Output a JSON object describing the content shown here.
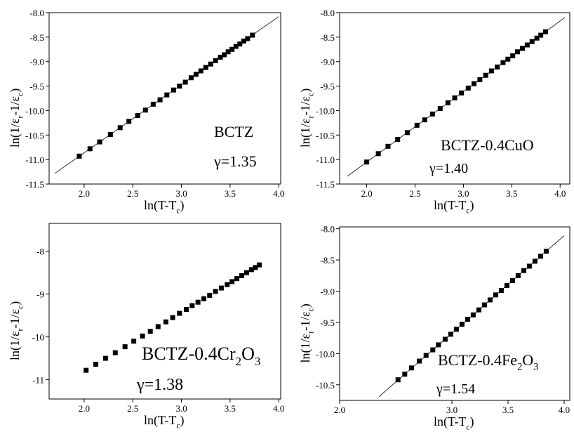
{
  "chart_data": [
    {
      "type": "scatter",
      "xlabel": [
        "ln(T-T",
        "c",
        ")"
      ],
      "ylabel": [
        "ln(1/ε",
        "r",
        "-1/ε",
        "c",
        ")"
      ],
      "annotation": [
        "BCTZ"
      ],
      "gamma": "γ=1.35",
      "xlim": [
        1.64,
        4.02
      ],
      "ylim": [
        -11.5,
        -8.0
      ],
      "xticks": [
        {
          "value": 2,
          "label": "2.0"
        },
        2.5,
        {
          "value": 3,
          "label": "3.0"
        },
        3.5,
        {
          "value": 4,
          "label": "4.0"
        }
      ],
      "yticks": [
        {
          "value": -8,
          "label": "-8.0"
        },
        -8.5,
        {
          "value": -9,
          "label": "-9.0"
        },
        -9.5,
        {
          "value": -10,
          "label": "-10.0"
        },
        -10.5,
        {
          "value": -11,
          "label": "-11.0"
        },
        -11.5
      ],
      "color": "#000000",
      "x": [
        1.95,
        2.06,
        2.16,
        2.27,
        2.37,
        2.46,
        2.55,
        2.63,
        2.71,
        2.78,
        2.85,
        2.92,
        2.98,
        3.04,
        3.1,
        3.15,
        3.2,
        3.25,
        3.3,
        3.35,
        3.4,
        3.44,
        3.48,
        3.52,
        3.56,
        3.6,
        3.64,
        3.68,
        3.73
      ],
      "values": [
        -10.93,
        -10.78,
        -10.64,
        -10.49,
        -10.35,
        -10.22,
        -10.1,
        -9.99,
        -9.87,
        -9.78,
        -9.68,
        -9.58,
        -9.5,
        -9.42,
        -9.33,
        -9.26,
        -9.19,
        -9.12,
        -9.05,
        -8.98,
        -8.91,
        -8.86,
        -8.8,
        -8.75,
        -8.69,
        -8.64,
        -8.58,
        -8.53,
        -8.46
      ],
      "fit": {
        "x": [
          1.7,
          4.0
        ],
        "values": [
          -11.28,
          -8.08
        ]
      }
    },
    {
      "type": "scatter",
      "xlabel": [
        "ln(T-T",
        "c",
        ")"
      ],
      "ylabel": [
        "ln(1/ε",
        "r",
        "-1/ε",
        "c",
        ")"
      ],
      "annotation": [
        "BCTZ-0.4CuO"
      ],
      "gamma": "γ=1.40",
      "xlim": [
        1.72,
        4.1
      ],
      "ylim": [
        -11.5,
        -8.0
      ],
      "xticks": [
        {
          "value": 2,
          "label": "2.0"
        },
        2.5,
        {
          "value": 3,
          "label": "3.0"
        },
        3.5,
        {
          "value": 4,
          "label": "4.0"
        }
      ],
      "yticks": [
        {
          "value": -8,
          "label": "-8.0"
        },
        -8.5,
        {
          "value": -9,
          "label": "-9.0"
        },
        -9.5,
        {
          "value": -10,
          "label": "-10.0"
        },
        -10.5,
        {
          "value": -11,
          "label": "-11.0"
        },
        -11.5
      ],
      "color": "#000000",
      "x": [
        2.0,
        2.12,
        2.22,
        2.32,
        2.42,
        2.52,
        2.6,
        2.68,
        2.76,
        2.84,
        2.91,
        2.98,
        3.05,
        3.11,
        3.17,
        3.23,
        3.29,
        3.35,
        3.41,
        3.46,
        3.51,
        3.56,
        3.61,
        3.66,
        3.71,
        3.76,
        3.8,
        3.85
      ],
      "values": [
        -11.05,
        -10.88,
        -10.73,
        -10.59,
        -10.45,
        -10.3,
        -10.19,
        -10.07,
        -9.96,
        -9.84,
        -9.74,
        -9.64,
        -9.54,
        -9.45,
        -9.37,
        -9.28,
        -9.19,
        -9.11,
        -9.02,
        -8.95,
        -8.88,
        -8.8,
        -8.73,
        -8.66,
        -8.59,
        -8.52,
        -8.46,
        -8.39
      ],
      "fit": {
        "x": [
          1.8,
          4.05
        ],
        "values": [
          -11.34,
          -8.1
        ]
      }
    },
    {
      "type": "scatter",
      "xlabel": [
        "ln(T-T",
        "c",
        ")"
      ],
      "ylabel": [
        "ln(1/ε",
        "r",
        "-1/ε",
        "c",
        ")"
      ],
      "annotation": [
        "BCTZ-0.4Cr",
        "2",
        "O",
        "3"
      ],
      "gamma": "γ=1.38",
      "xlim": [
        1.64,
        4.02
      ],
      "ylim": [
        -11.45,
        -7.35
      ],
      "xticks": [
        {
          "value": 2,
          "label": "2.0"
        },
        2.5,
        {
          "value": 3,
          "label": "3.0"
        },
        3.5,
        {
          "value": 4,
          "label": "4.0"
        }
      ],
      "yticks": [
        -8,
        -9,
        -10,
        -11
      ],
      "color": "#000000",
      "x": [
        2.02,
        2.12,
        2.22,
        2.32,
        2.42,
        2.51,
        2.6,
        2.68,
        2.76,
        2.84,
        2.91,
        2.98,
        3.05,
        3.11,
        3.17,
        3.23,
        3.29,
        3.35,
        3.41,
        3.47,
        3.52,
        3.57,
        3.62,
        3.67,
        3.72,
        3.76,
        3.8
      ],
      "values": [
        -10.78,
        -10.64,
        -10.5,
        -10.37,
        -10.23,
        -10.1,
        -9.98,
        -9.87,
        -9.76,
        -9.65,
        -9.55,
        -9.45,
        -9.36,
        -9.27,
        -9.19,
        -9.11,
        -9.03,
        -8.94,
        -8.86,
        -8.78,
        -8.71,
        -8.64,
        -8.57,
        -8.5,
        -8.43,
        -8.38,
        -8.32
      ]
    },
    {
      "type": "scatter",
      "xlabel": [
        "ln(T-T",
        "c",
        ")"
      ],
      "ylabel": [
        "ln(1/ε",
        "r",
        "-1/ε",
        "c",
        ")"
      ],
      "annotation": [
        "BCTZ-0.4Fe",
        "2",
        "O",
        "3"
      ],
      "gamma": "γ=1.54",
      "xlim": [
        2.0,
        4.05
      ],
      "ylim": [
        -10.75,
        -7.97
      ],
      "xticks": [
        {
          "value": 2,
          "label": "2.0"
        },
        {
          "value": 3,
          "label": "3.0"
        },
        3.5,
        {
          "value": 4,
          "label": "4.0"
        }
      ],
      "yticks": [
        {
          "value": -8,
          "label": "-8.0"
        },
        -8.5,
        {
          "value": -9,
          "label": "-9.0"
        },
        -9.5,
        {
          "value": -10,
          "label": "-10.0"
        },
        -10.5
      ],
      "color": "#000000",
      "x": [
        2.52,
        2.58,
        2.64,
        2.71,
        2.77,
        2.83,
        2.88,
        2.94,
        2.99,
        3.04,
        3.09,
        3.14,
        3.19,
        3.24,
        3.29,
        3.34,
        3.39,
        3.44,
        3.49,
        3.54,
        3.59,
        3.64,
        3.69,
        3.74,
        3.79,
        3.84
      ],
      "values": [
        -10.42,
        -10.33,
        -10.23,
        -10.12,
        -10.03,
        -9.94,
        -9.86,
        -9.77,
        -9.69,
        -9.61,
        -9.53,
        -9.45,
        -9.38,
        -9.3,
        -9.22,
        -9.14,
        -9.06,
        -8.99,
        -8.91,
        -8.83,
        -8.75,
        -8.67,
        -8.6,
        -8.52,
        -8.44,
        -8.36
      ],
      "fit": {
        "x": [
          2.35,
          4.0
        ],
        "values": [
          -10.69,
          -8.11
        ]
      }
    }
  ]
}
